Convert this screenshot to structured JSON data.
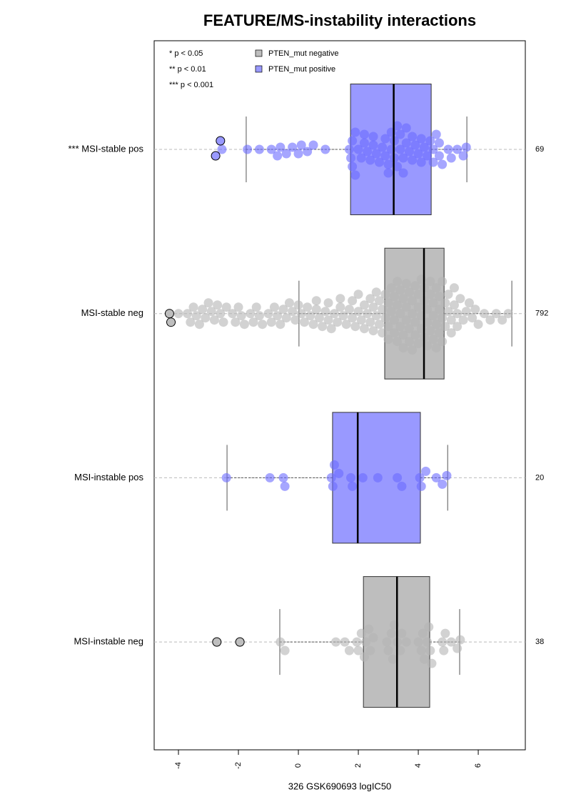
{
  "chart_data": {
    "type": "box",
    "title": "FEATURE/MS-instability interactions",
    "x_label": "326 GSK690693 logIC50",
    "xlim": [
      -4.81,
      7.57
    ],
    "xticks": [
      -4,
      -2,
      0,
      2,
      4,
      6
    ],
    "annotations": [
      "* p < 0.05",
      "** p < 0.01",
      "*** p < 0.001"
    ],
    "legend": [
      {
        "name": "PTEN_mut negative",
        "color": "#bebebe"
      },
      {
        "name": "PTEN_mut positive",
        "color": "#9999ff"
      }
    ],
    "groups": [
      {
        "label": "*** MSI-stable pos",
        "n": 69,
        "color": "#9999ff",
        "point_color": "#6a6aff",
        "q1": 1.74,
        "median": 3.18,
        "q3": 4.43,
        "whisker_low": -1.74,
        "whisker_high": 5.62,
        "outliers": [
          -2.76,
          -2.6
        ],
        "points": [
          -2.55,
          -1.7,
          -1.3,
          -0.9,
          -0.7,
          -0.6,
          -0.4,
          -0.2,
          0.0,
          0.1,
          0.3,
          0.5,
          0.9,
          1.7,
          1.75,
          1.8,
          1.8,
          1.9,
          2.0,
          2.1,
          2.2,
          2.2,
          2.3,
          2.4,
          2.5,
          2.5,
          2.6,
          2.8,
          2.9,
          2.9,
          3.0,
          3.1,
          3.1,
          3.2,
          3.2,
          3.3,
          3.3,
          3.4,
          3.4,
          3.5,
          3.5,
          3.6,
          3.6,
          3.7,
          3.8,
          3.9,
          4.0,
          4.1,
          4.2,
          4.3,
          4.4,
          4.5,
          4.5,
          4.6,
          4.7,
          4.7,
          4.8,
          5.0,
          5.1,
          5.3,
          5.5,
          5.6,
          2.7,
          3.0,
          3.8,
          4.1,
          1.9
        ]
      },
      {
        "label": "MSI-stable neg",
        "n": 792,
        "color": "#bebebe",
        "point_color": "#b4b4b4",
        "q1": 2.88,
        "median": 4.19,
        "q3": 4.86,
        "whisker_low": 0.02,
        "whisker_high": 7.12,
        "outliers": [
          -4.3,
          -4.25
        ],
        "points": [
          -4.0,
          -3.7,
          -3.6,
          -3.5,
          -3.4,
          -3.3,
          -3.2,
          -3.1,
          -3.0,
          -2.9,
          -2.8,
          -2.7,
          -2.6,
          -2.5,
          -2.4,
          -2.2,
          -2.1,
          -2.0,
          -1.9,
          -1.8,
          -1.6,
          -1.5,
          -1.4,
          -1.3,
          -1.2,
          -1.0,
          -0.9,
          -0.8,
          -0.7,
          -0.6,
          -0.5,
          -0.4,
          -0.3,
          -0.2,
          -0.1,
          0.0,
          0.1,
          0.2,
          0.3,
          0.4,
          0.5,
          0.6,
          0.6,
          0.7,
          0.8,
          0.9,
          1.0,
          1.0,
          1.1,
          1.2,
          1.3,
          1.4,
          1.4,
          1.5,
          1.6,
          1.7,
          1.8,
          1.8,
          1.9,
          2.0,
          2.0,
          2.1,
          2.2,
          2.2,
          2.3,
          2.4,
          2.4,
          2.5,
          2.5,
          2.6,
          2.6,
          2.7,
          2.7,
          2.8,
          2.8,
          2.9,
          2.9,
          3.0,
          3.0,
          3.0,
          3.1,
          3.1,
          3.2,
          3.2,
          3.2,
          3.3,
          3.3,
          3.3,
          3.4,
          3.4,
          3.4,
          3.5,
          3.5,
          3.5,
          3.6,
          3.6,
          3.6,
          3.7,
          3.7,
          3.7,
          3.8,
          3.8,
          3.8,
          3.9,
          3.9,
          3.9,
          4.0,
          4.0,
          4.0,
          4.1,
          4.1,
          4.1,
          4.2,
          4.2,
          4.2,
          4.3,
          4.3,
          4.3,
          4.4,
          4.4,
          4.4,
          4.5,
          4.5,
          4.5,
          4.6,
          4.6,
          4.6,
          4.7,
          4.7,
          4.7,
          4.8,
          4.8,
          4.8,
          4.9,
          4.9,
          5.0,
          5.0,
          5.1,
          5.1,
          5.2,
          5.2,
          5.3,
          5.3,
          5.4,
          5.5,
          5.6,
          5.7,
          5.8,
          5.9,
          6.0,
          6.2,
          6.4,
          6.6,
          6.8,
          7.0
        ]
      },
      {
        "label": "MSI-instable pos",
        "n": 20,
        "color": "#9999ff",
        "point_color": "#6a6aff",
        "q1": 1.14,
        "median": 1.98,
        "q3": 4.07,
        "whisker_low": -2.38,
        "whisker_high": 4.98,
        "outliers": [],
        "points": [
          -2.4,
          -0.95,
          -0.5,
          -0.45,
          1.1,
          1.15,
          1.35,
          1.75,
          1.8,
          2.15,
          2.65,
          3.3,
          3.45,
          4.05,
          4.1,
          4.25,
          4.6,
          4.8,
          4.95,
          1.2
        ]
      },
      {
        "label": "MSI-instable neg",
        "n": 38,
        "color": "#bebebe",
        "point_color": "#b4b4b4",
        "q1": 2.17,
        "median": 3.29,
        "q3": 4.38,
        "whisker_low": -0.62,
        "whisker_high": 5.38,
        "outliers": [
          -2.72,
          -1.95
        ],
        "points": [
          -0.6,
          -0.45,
          1.25,
          1.55,
          1.7,
          1.95,
          2.0,
          2.1,
          2.2,
          2.25,
          2.35,
          2.4,
          2.5,
          2.95,
          3.0,
          3.1,
          3.15,
          3.2,
          3.3,
          3.4,
          3.45,
          3.6,
          4.0,
          4.1,
          4.15,
          4.2,
          4.3,
          4.35,
          4.4,
          4.45,
          4.8,
          4.85,
          4.9,
          5.1,
          5.3,
          5.4
        ]
      }
    ]
  }
}
